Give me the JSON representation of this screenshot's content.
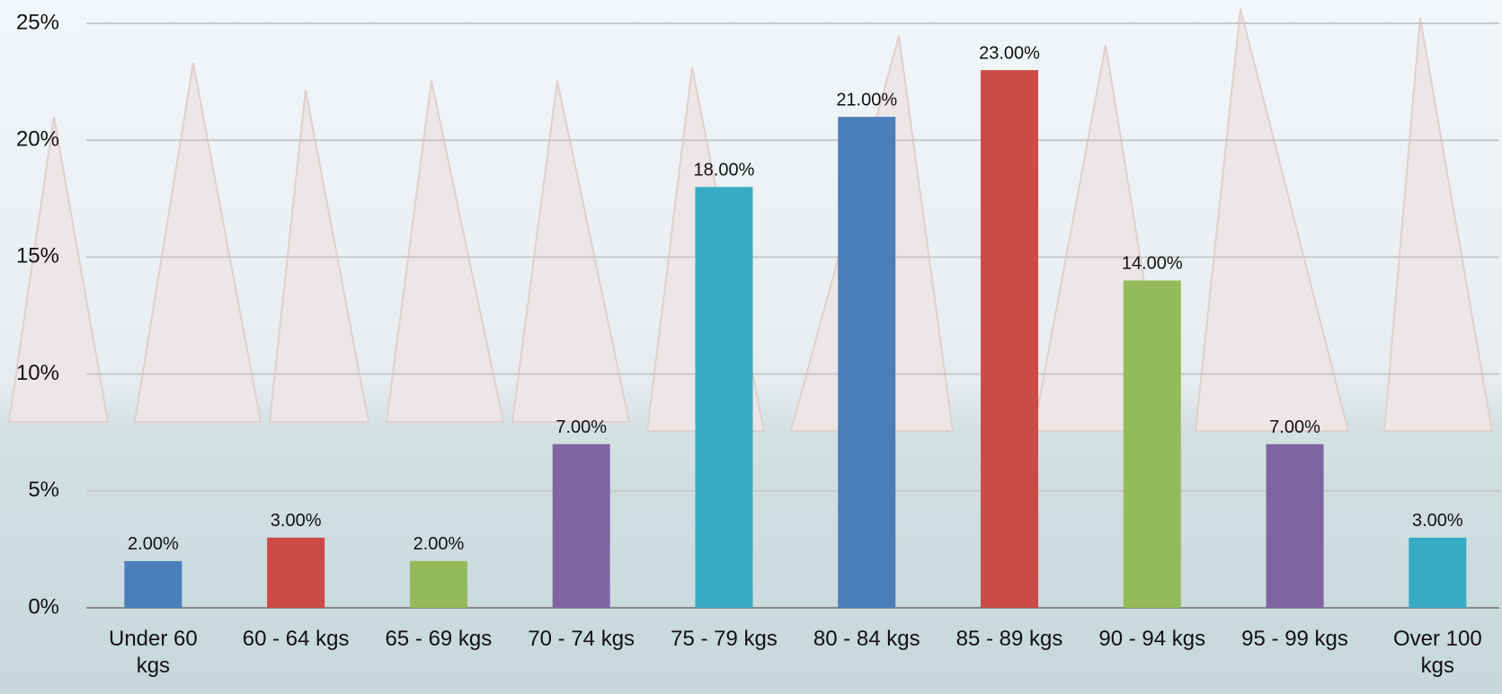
{
  "chart_data": {
    "type": "bar",
    "categories": [
      "Under 60 kgs",
      "60 - 64 kgs",
      "65 - 69 kgs",
      "70 - 74 kgs",
      "75 - 79 kgs",
      "80 - 84 kgs",
      "85 - 89 kgs",
      "90 - 94 kgs",
      "95 - 99 kgs",
      "Over 100 kgs"
    ],
    "values": [
      2,
      3,
      2,
      7,
      18,
      21,
      23,
      14,
      7,
      3
    ],
    "value_labels": [
      "2.00%",
      "3.00%",
      "2.00%",
      "7.00%",
      "18.00%",
      "21.00%",
      "23.00%",
      "14.00%",
      "7.00%",
      "3.00%"
    ],
    "colors": [
      "#4a7ebb",
      "#cb4b48",
      "#94bb59",
      "#8064a2",
      "#37aac4",
      "#4a7ebb",
      "#cb4b48",
      "#94bb59",
      "#8064a2",
      "#37aac4"
    ],
    "ylim": [
      0,
      25
    ],
    "yticks": [
      {
        "value": 0,
        "label": "0%"
      },
      {
        "value": 5,
        "label": "5%"
      },
      {
        "value": 10,
        "label": "10%"
      },
      {
        "value": 15,
        "label": "15%"
      },
      {
        "value": 20,
        "label": "20%"
      },
      {
        "value": 25,
        "label": "25%"
      }
    ],
    "grid": true
  }
}
